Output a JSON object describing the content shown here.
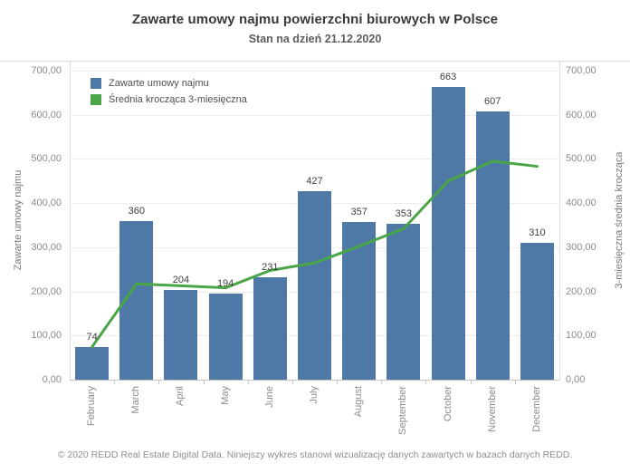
{
  "header": {
    "title": "Zawarte umowy najmu powierzchni biurowych w Polsce",
    "subtitle": "Stan na dzień 21.12.2020"
  },
  "legend": {
    "items": [
      {
        "label": "Zawarte umowy najmu",
        "color": "#4e79a7"
      },
      {
        "label": "Średnia krocząca 3-miesięczna",
        "color": "#4aa546"
      }
    ]
  },
  "footer": {
    "text": "© 2020 REDD Real Estate Digital Data. Niniejszy wykres stanowi wizualizację danych zawartych w bazach danych REDD."
  },
  "chart_data": {
    "type": "bar",
    "title": "Zawarte umowy najmu powierzchni biurowych w Polsce",
    "subtitle": "Stan na dzień 21.12.2020",
    "categories": [
      "February",
      "March",
      "April",
      "May",
      "June",
      "July",
      "August",
      "September",
      "October",
      "November",
      "December"
    ],
    "series": [
      {
        "name": "Zawarte umowy najmu",
        "type": "bar",
        "color": "#4e79a7",
        "axis": "left",
        "values": [
          74,
          360,
          204,
          194,
          231,
          427,
          357,
          353,
          663,
          607,
          310
        ],
        "data_labels": [
          "74",
          "360",
          "204",
          "194",
          "231",
          "427",
          "357",
          "353",
          "663",
          "607",
          "310"
        ]
      },
      {
        "name": "Średnia krocząca 3-miesięczna",
        "type": "line",
        "color": "#4aa546",
        "axis": "right",
        "values": [
          74,
          217,
          212.7,
          208,
          247.3,
          264.5,
          302.3,
          342,
          450,
          495,
          483.3
        ]
      }
    ],
    "xlabel": "",
    "ylabel_left": "Zawarte umowy najmu",
    "ylabel_right": "3-miesięczna średnia krocząca",
    "ylim": [
      0,
      700
    ],
    "ytick_step": 100,
    "ytick_labels": [
      "0,00",
      "100,00",
      "200,00",
      "300,00",
      "400,00",
      "500,00",
      "600,00",
      "700,00"
    ],
    "grid": true,
    "legend_position": "inside-top-left"
  }
}
